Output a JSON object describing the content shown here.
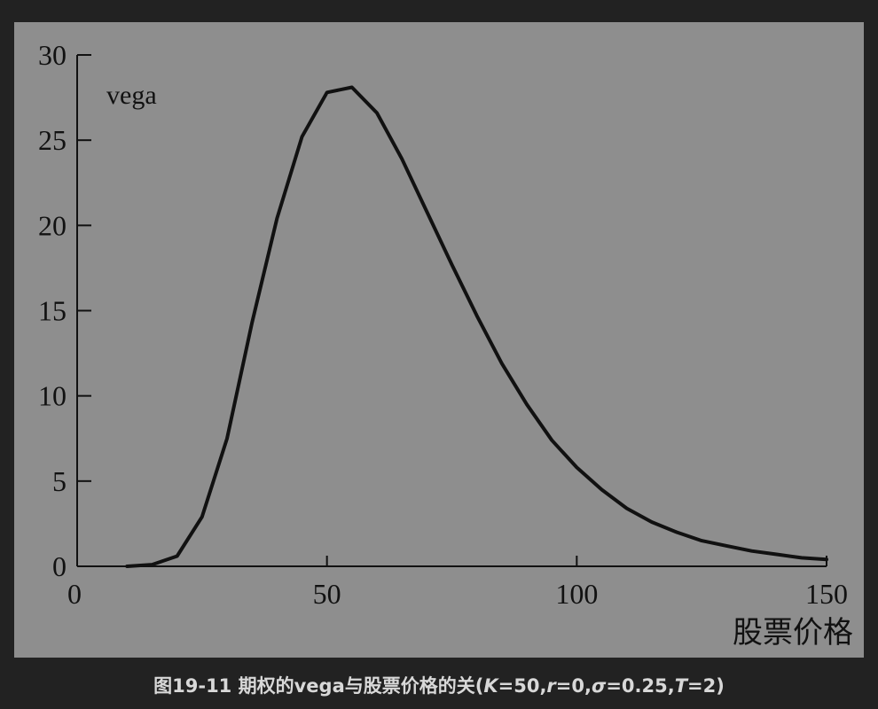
{
  "caption": {
    "prefix": "图19-11 期权的vega与股票价格的关(",
    "k_sym": "K",
    "k_val": "=50,",
    "r_sym": "r",
    "r_val": "=0,",
    "sigma_sym": "σ",
    "sigma_val": "=0.25,",
    "t_sym": "T",
    "t_val": "=2)"
  },
  "colors": {
    "page_background": "#222222",
    "plot_background": "#8e8e8e",
    "line": "#111111",
    "caption_text": "#d8d8d8"
  },
  "chart_data": {
    "type": "line",
    "ylabel": "vega",
    "xlabel": "股票价格",
    "xlim": [
      0,
      150
    ],
    "ylim": [
      0,
      30
    ],
    "xticks": [
      0,
      50,
      100,
      150
    ],
    "yticks": [
      0,
      5,
      10,
      15,
      20,
      25,
      30
    ],
    "grid": false,
    "x": [
      10,
      15,
      20,
      25,
      30,
      35,
      40,
      45,
      50,
      55,
      60,
      65,
      70,
      75,
      80,
      85,
      90,
      95,
      100,
      105,
      110,
      115,
      120,
      125,
      130,
      135,
      140,
      145,
      150
    ],
    "y": [
      0.0,
      0.1,
      0.6,
      2.9,
      7.5,
      14.3,
      20.4,
      25.2,
      27.8,
      28.1,
      26.6,
      23.9,
      20.8,
      17.7,
      14.7,
      11.9,
      9.5,
      7.4,
      5.8,
      4.5,
      3.4,
      2.6,
      2.0,
      1.5,
      1.2,
      0.9,
      0.7,
      0.5,
      0.4
    ]
  }
}
